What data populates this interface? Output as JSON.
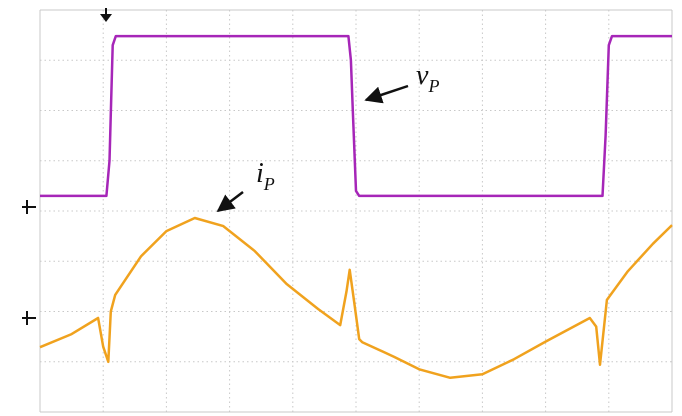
{
  "chart_data": {
    "type": "line",
    "annotations": [
      {
        "text": "v",
        "subscript": "P"
      },
      {
        "text": "i",
        "subscript": "P"
      }
    ],
    "xlim": [
      0,
      10
    ],
    "ylim": [
      -4,
      4
    ],
    "grid": true,
    "series": [
      {
        "color": "#a626b8",
        "x": [
          0,
          1.05,
          1.1,
          1.15,
          1.2,
          4.88,
          4.92,
          4.95,
          5.0,
          5.05,
          8.9,
          8.95,
          9.0,
          9.05,
          10
        ],
        "values": [
          0.3,
          0.3,
          1.0,
          3.3,
          3.48,
          3.48,
          3.0,
          2.0,
          0.4,
          0.3,
          0.3,
          1.5,
          3.3,
          3.48,
          3.48
        ]
      },
      {
        "color": "#f0a21e",
        "x": [
          0,
          0.5,
          0.92,
          1.0,
          1.08,
          1.12,
          1.19,
          1.6,
          2.0,
          2.45,
          2.9,
          3.4,
          3.9,
          4.4,
          4.75,
          4.85,
          4.9,
          4.97,
          5.05,
          5.1,
          5.6,
          6.0,
          6.49,
          7.0,
          7.5,
          8.0,
          8.7,
          8.8,
          8.86,
          8.97,
          9.3,
          9.7,
          10
        ],
        "values": [
          -2.71,
          -2.45,
          -2.13,
          -2.7,
          -3.0,
          -2.0,
          -1.67,
          -0.9,
          -0.4,
          -0.14,
          -0.3,
          -0.8,
          -1.45,
          -1.95,
          -2.27,
          -1.6,
          -1.17,
          -1.8,
          -2.55,
          -2.61,
          -2.9,
          -3.15,
          -3.32,
          -3.25,
          -2.95,
          -2.6,
          -2.13,
          -2.3,
          -3.06,
          -1.77,
          -1.2,
          -0.65,
          -0.28
        ]
      }
    ]
  }
}
